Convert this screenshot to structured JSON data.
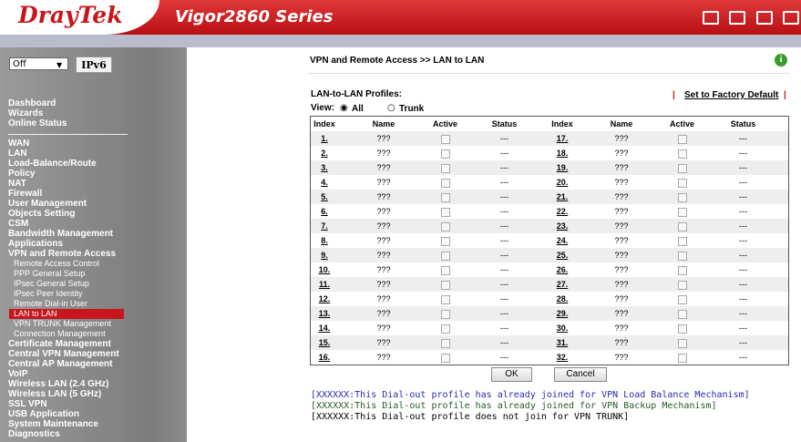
{
  "header": {
    "brand": "DrayTek",
    "model": "Vigor2860 Series"
  },
  "sidebar": {
    "select": "Off",
    "ipv6": "IPv6",
    "menu_top": [
      "Dashboard",
      "Wizards",
      "Online Status"
    ],
    "menu": [
      "WAN",
      "LAN",
      "Load-Balance/Route",
      "Policy",
      "NAT",
      "Firewall",
      "User Management",
      "Objects Setting",
      "CSM",
      "Bandwidth Management",
      "Applications",
      {
        "label": "VPN and Remote Access",
        "children": [
          "Remote Access Control",
          "PPP General Setup",
          "IPsec General Setup",
          "IPsec Peer Identity",
          "Remote Dial-in User",
          "LAN to LAN",
          "VPN TRUNK Management",
          "Connection Management"
        ]
      },
      "Certificate Management",
      "Central VPN Management",
      "Central AP Management",
      "VoIP",
      "Wireless LAN (2.4 GHz)",
      "Wireless LAN (5 GHz)",
      "SSL VPN",
      "USB Application",
      "System Maintenance",
      "Diagnostics"
    ]
  },
  "main": {
    "title": "VPN and Remote Access >> LAN to LAN",
    "section": "LAN-to-LAN Profiles:",
    "factory": "Set to Factory Default",
    "view": {
      "label": "View:",
      "options": [
        "All",
        "Trunk"
      ]
    },
    "table": {
      "headers": [
        "Index",
        "Name",
        "Active",
        "Status",
        "Index",
        "Name",
        "Active",
        "Status"
      ],
      "rows": [
        [
          "1.",
          "???",
          "---",
          "17.",
          "???",
          "---"
        ],
        [
          "2.",
          "???",
          "---",
          "18.",
          "???",
          "---"
        ],
        [
          "3.",
          "???",
          "---",
          "19.",
          "???",
          "---"
        ],
        [
          "4.",
          "???",
          "---",
          "20.",
          "???",
          "---"
        ],
        [
          "5.",
          "???",
          "---",
          "21.",
          "???",
          "---"
        ],
        [
          "6.",
          "???",
          "---",
          "22.",
          "???",
          "---"
        ],
        [
          "7.",
          "???",
          "---",
          "23.",
          "???",
          "---"
        ],
        [
          "8.",
          "???",
          "---",
          "24.",
          "???",
          "---"
        ],
        [
          "9.",
          "???",
          "---",
          "25.",
          "???",
          "---"
        ],
        [
          "10.",
          "???",
          "---",
          "26.",
          "???",
          "---"
        ],
        [
          "11.",
          "???",
          "---",
          "27.",
          "???",
          "---"
        ],
        [
          "12.",
          "???",
          "---",
          "28.",
          "???",
          "---"
        ],
        [
          "13.",
          "???",
          "---",
          "29.",
          "???",
          "---"
        ],
        [
          "14.",
          "???",
          "---",
          "30.",
          "???",
          "---"
        ],
        [
          "15.",
          "???",
          "---",
          "31.",
          "???",
          "---"
        ],
        [
          "16.",
          "???",
          "---",
          "32.",
          "???",
          "---"
        ]
      ]
    },
    "buttons": [
      "OK",
      "Cancel"
    ],
    "notes": [
      "[XXXXXX:This Dial-out profile has already joined for VPN Load Balance Mechanism]",
      "[XXXXXX:This Dial-out profile has already joined for VPN Backup Mechanism]",
      "[XXXXXX:This Dial-out profile does not join for VPN TRUNK]"
    ]
  }
}
